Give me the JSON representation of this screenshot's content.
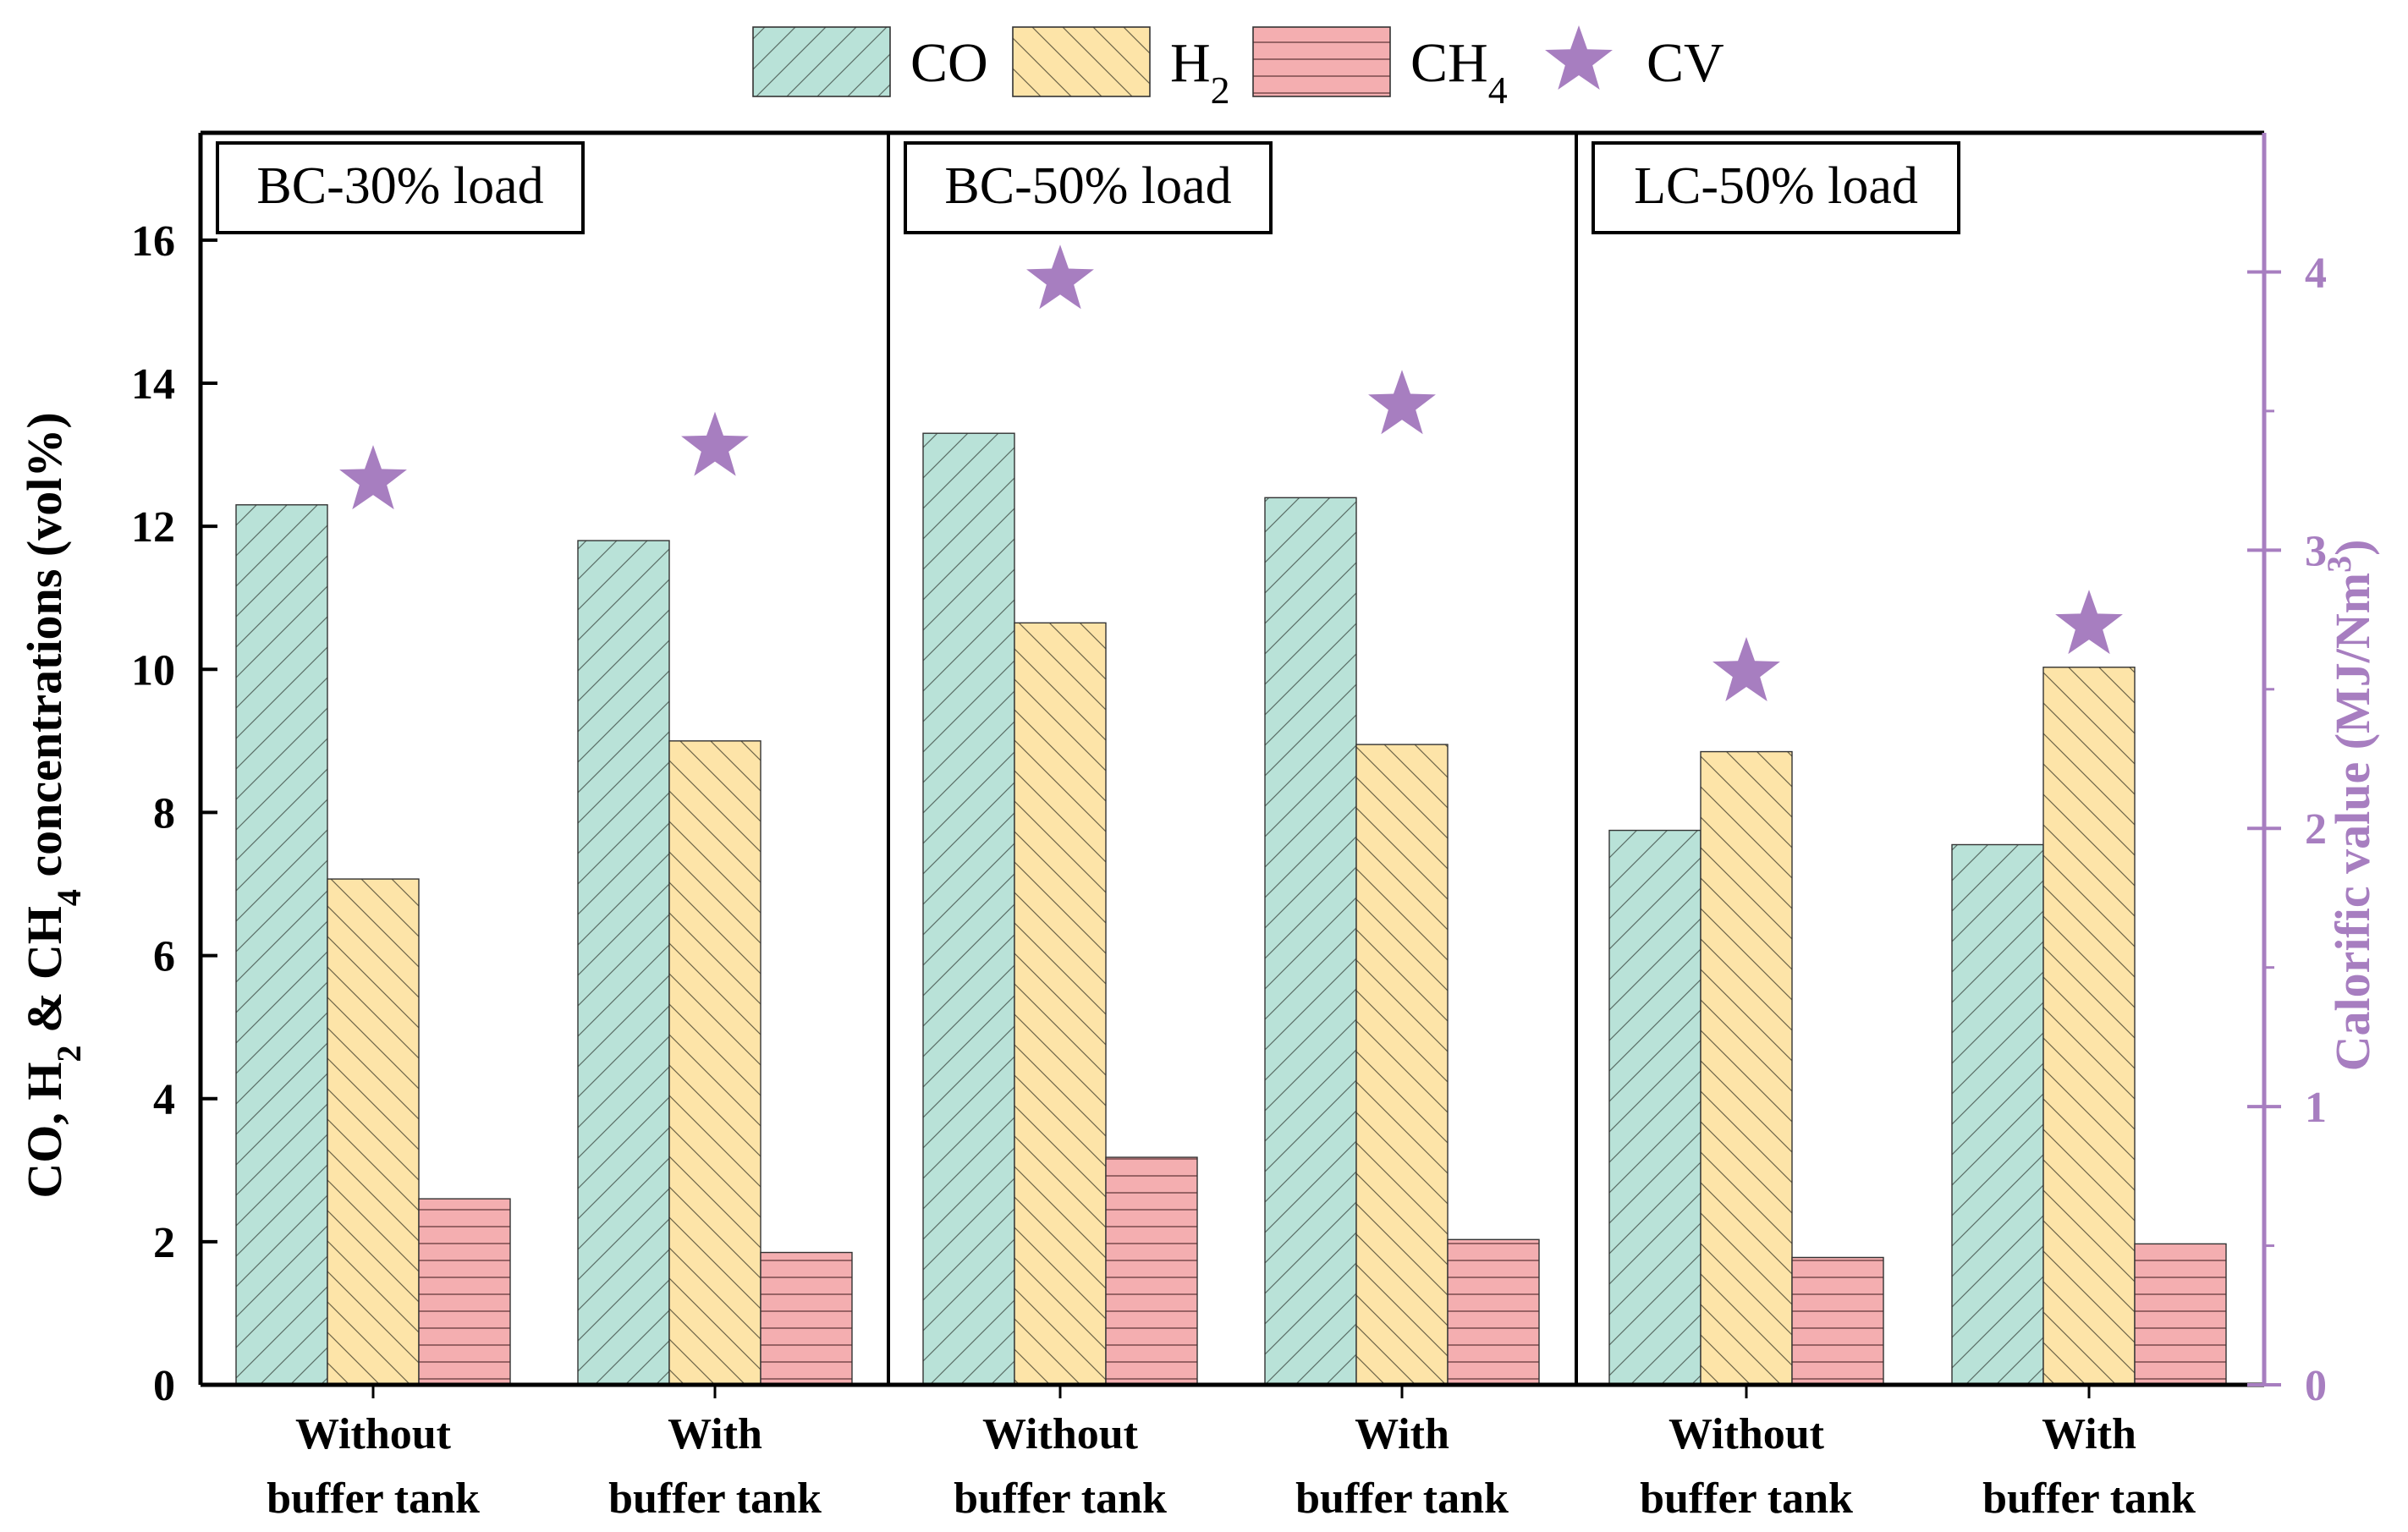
{
  "chart_data": {
    "type": "bar",
    "panels": [
      {
        "title": "BC-30% load"
      },
      {
        "title": "BC-50% load"
      },
      {
        "title": "LC-50% load"
      }
    ],
    "categories": [
      [
        "Without",
        "buffer tank"
      ],
      [
        "With",
        "buffer tank"
      ],
      [
        "Without",
        "buffer tank"
      ],
      [
        "With",
        "buffer tank"
      ],
      [
        "Without",
        "buffer tank"
      ],
      [
        "With",
        "buffer tank"
      ]
    ],
    "series": [
      {
        "name": "CO",
        "sub": "",
        "pattern": "diag-up",
        "color": "#b9e2d8",
        "values": [
          12.3,
          11.8,
          13.3,
          12.4,
          7.75,
          7.55
        ]
      },
      {
        "name": "H",
        "sub": "2",
        "pattern": "diag-down",
        "color": "#fde4a8",
        "values": [
          7.07,
          9.0,
          10.65,
          8.95,
          8.85,
          10.03
        ]
      },
      {
        "name": "CH",
        "sub": "4",
        "pattern": "horizontal",
        "color": "#f4aeb0",
        "values": [
          2.6,
          1.85,
          3.18,
          2.03,
          1.78,
          1.97
        ]
      }
    ],
    "cv_series": {
      "name": "CV",
      "color": "#a77ec0",
      "values": [
        3.25,
        3.37,
        3.97,
        3.52,
        2.56,
        2.73
      ]
    },
    "ylabel_left": {
      "p1": "CO, H",
      "s1": "2",
      "p2": " & CH",
      "s2": "4",
      "p3": " concentrations (vol%)"
    },
    "ylabel_right": {
      "text": "Calorific value (MJ/Nm",
      "sup": "3",
      "close": ")"
    },
    "ylim_left": [
      0,
      17.5
    ],
    "ylim_right": [
      0,
      4.5
    ],
    "yticks_left": [
      0,
      2,
      4,
      6,
      8,
      10,
      12,
      14,
      16
    ],
    "yticks_right": [
      0,
      1,
      2,
      3,
      4
    ],
    "legend_position": "top-center",
    "colors": {
      "axis": "#000000",
      "right_axis": "#a77ec0",
      "cv": "#a77ec0"
    }
  }
}
